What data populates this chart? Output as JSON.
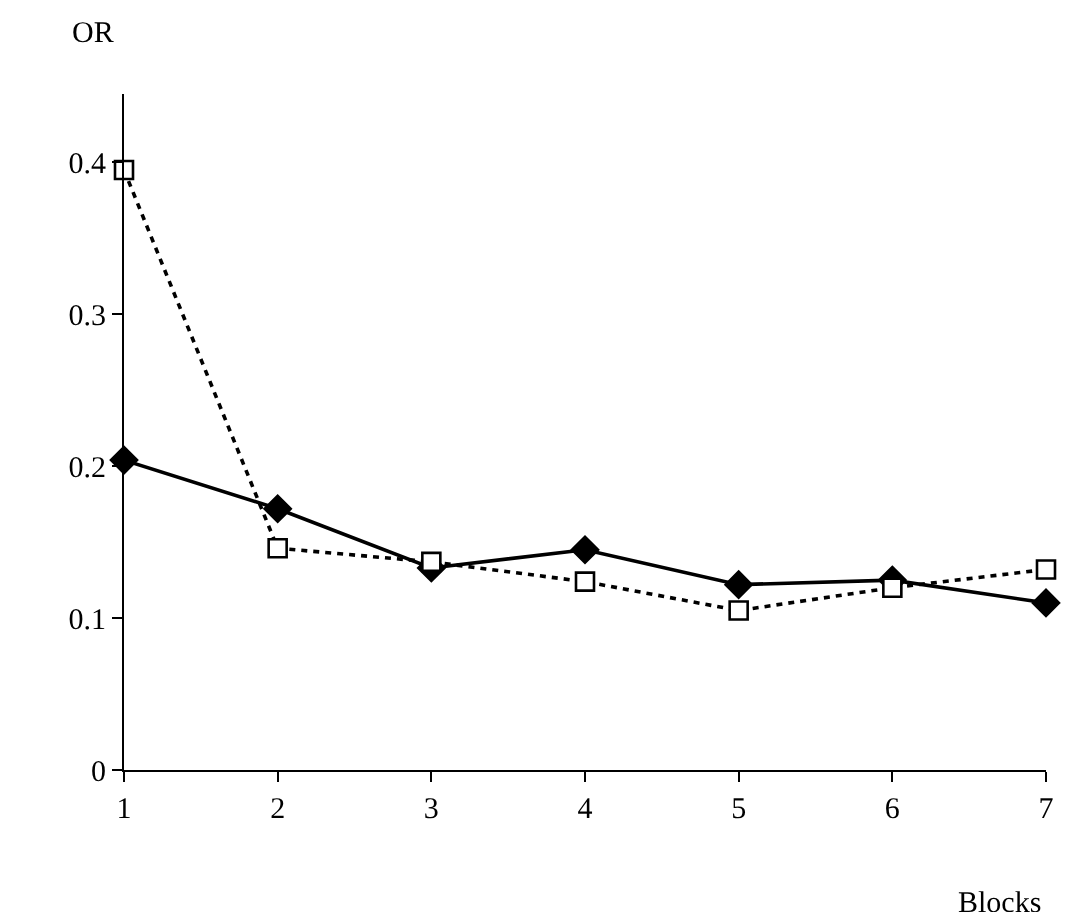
{
  "chart_data": {
    "type": "line",
    "xlabel": "Blocks",
    "ylabel": "OR",
    "x": [
      1,
      2,
      3,
      4,
      5,
      6,
      7
    ],
    "series": [
      {
        "color": "#000000",
        "marker": "diamond",
        "line_style": "solid",
        "values": [
          0.204,
          0.172,
          0.133,
          0.145,
          0.122,
          0.125,
          0.11
        ]
      },
      {
        "color": "#000000",
        "marker": "square",
        "line_style": "dotted",
        "values": [
          0.395,
          0.146,
          0.137,
          0.124,
          0.105,
          0.12,
          0.132
        ]
      }
    ],
    "xlim": [
      1,
      7
    ],
    "xticks": [
      1,
      2,
      3,
      4,
      5,
      6,
      7
    ],
    "ylim": [
      0,
      0.445
    ],
    "yticks": [
      0,
      0.1,
      0.2,
      0.3,
      0.4
    ],
    "grid": false
  }
}
